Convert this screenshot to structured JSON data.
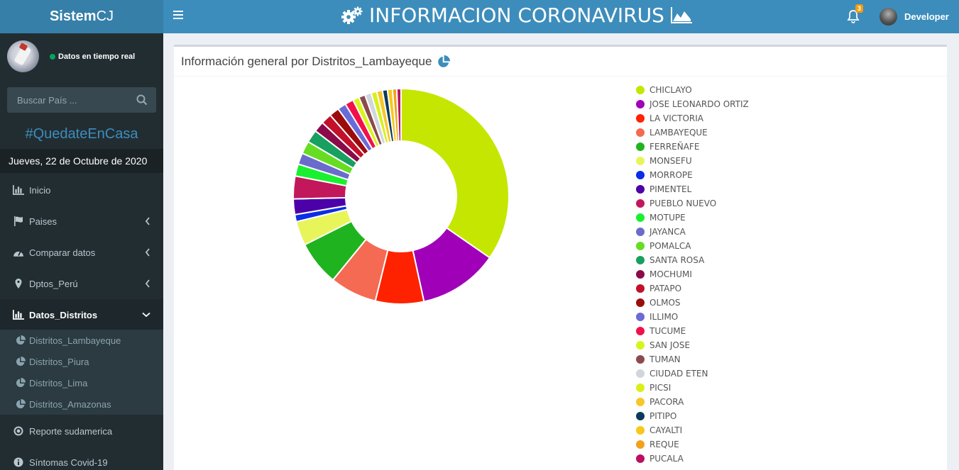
{
  "sidebar": {
    "logo_bold": "Sistem",
    "logo_rest": "CJ",
    "status": "Datos en tiempo real",
    "search_placeholder": "Buscar País ...",
    "hashtag": "#QuedateEnCasa",
    "date": "Jueves, 22 de Octubre de 2020",
    "menu": [
      {
        "label": "Inicio"
      },
      {
        "label": "Paises"
      },
      {
        "label": "Comparar datos"
      },
      {
        "label": "Dptos_Perú"
      },
      {
        "label": "Datos_Distritos"
      }
    ],
    "submenu": [
      {
        "label": "Distritos_Lambayeque"
      },
      {
        "label": "Distritos_Piura"
      },
      {
        "label": "Distritos_Lima"
      },
      {
        "label": "Distritos_Amazonas"
      }
    ],
    "extra": [
      {
        "label": "Reporte sudamerica"
      },
      {
        "label": "Síntomas Covid-19"
      }
    ]
  },
  "header": {
    "title": "INFORMACION CORONAVIRUS",
    "notification_count": "3",
    "user_name": "Developer"
  },
  "box": {
    "title": "Información general por Distritos_Lambayeque"
  },
  "chart_data": {
    "type": "pie",
    "categories": [
      "CHICLAYO",
      "JOSE LEONARDO ORTIZ",
      "LA VICTORIA",
      "LAMBAYEQUE",
      "FERREÑAFE",
      "MONSEFU",
      "MORROPE",
      "PIMENTEL",
      "PUEBLO NUEVO",
      "MOTUPE",
      "JAYANCA",
      "POMALCA",
      "SANTA ROSA",
      "MOCHUMI",
      "PATAPO",
      "OLMOS",
      "ILLIMO",
      "TUCUME",
      "SAN JOSE",
      "TUMAN",
      "CIUDAD ETEN",
      "PICSI",
      "PACORA",
      "PITIPO",
      "CAYALTI",
      "REQUE",
      "PUCALA"
    ],
    "values": [
      32.5,
      11.2,
      6.8,
      6.6,
      6.3,
      3.4,
      1.0,
      2.2,
      3.2,
      1.7,
      1.6,
      1.8,
      1.8,
      1.5,
      1.5,
      1.4,
      1.2,
      1.2,
      0.9,
      0.9,
      0.9,
      0.8,
      0.8,
      0.7,
      0.7,
      0.6,
      0.6
    ],
    "colors": [
      "#c5e600",
      "#a000b8",
      "#ff2200",
      "#f46a52",
      "#1fb41f",
      "#e8f55a",
      "#0a2de6",
      "#4b00a8",
      "#c2185b",
      "#19f030",
      "#6b6bcc",
      "#66dd22",
      "#17a060",
      "#8a0a4a",
      "#c2102a",
      "#9c0c0c",
      "#6a6ad8",
      "#f2104c",
      "#d7f51c",
      "#8c4a4a",
      "#cfd6dc",
      "#d8f01a",
      "#f7c629",
      "#0b3a5c",
      "#f8c81a",
      "#f2a11c",
      "#bb1060"
    ]
  }
}
